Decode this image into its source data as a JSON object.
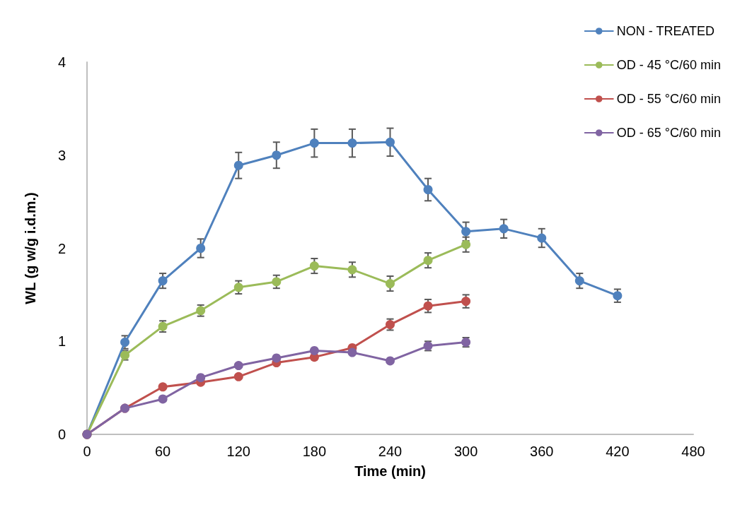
{
  "chart_data": {
    "type": "line",
    "xlabel": "Time (min)",
    "ylabel": "WL (g w/g i.d.m.)",
    "x": [
      0,
      30,
      60,
      90,
      120,
      150,
      180,
      210,
      240,
      270,
      300,
      330,
      360,
      390,
      420
    ],
    "series": [
      {
        "name": "NON - TREATED",
        "color": "#4f81bd",
        "values": [
          0,
          0.99,
          1.65,
          2.0,
          2.89,
          3.0,
          3.13,
          3.13,
          3.14,
          2.63,
          2.18,
          2.21,
          2.11,
          1.65,
          1.49
        ],
        "errors": [
          null,
          0.07,
          0.08,
          0.1,
          0.14,
          0.14,
          0.15,
          0.15,
          0.15,
          0.12,
          0.1,
          0.1,
          0.1,
          0.08,
          0.07
        ]
      },
      {
        "name": "OD - 45 °C/60 min",
        "color": "#9bbb59",
        "x": [
          0,
          30,
          60,
          90,
          120,
          150,
          180,
          210,
          240,
          270,
          300
        ],
        "values": [
          0,
          0.85,
          1.16,
          1.33,
          1.58,
          1.64,
          1.81,
          1.77,
          1.62,
          1.87,
          2.04
        ],
        "errors": [
          null,
          0.05,
          0.06,
          0.06,
          0.07,
          0.07,
          0.08,
          0.08,
          0.08,
          0.08,
          0.08
        ]
      },
      {
        "name": "OD - 55 °C/60 min",
        "color": "#c0504d",
        "x": [
          0,
          30,
          60,
          90,
          120,
          150,
          180,
          210,
          240,
          270,
          300
        ],
        "values": [
          0,
          0.28,
          0.51,
          0.56,
          0.62,
          0.77,
          0.83,
          0.93,
          1.18,
          1.38,
          1.43
        ],
        "errors": [
          null,
          null,
          null,
          null,
          null,
          null,
          null,
          null,
          0.06,
          0.07,
          0.07
        ]
      },
      {
        "name": "OD - 65 °C/60 min",
        "color": "#8064a2",
        "x": [
          0,
          30,
          60,
          90,
          120,
          150,
          180,
          210,
          240,
          270,
          300
        ],
        "values": [
          0,
          0.28,
          0.38,
          0.61,
          0.74,
          0.82,
          0.9,
          0.88,
          0.79,
          0.95,
          0.99
        ],
        "errors": [
          null,
          null,
          null,
          null,
          null,
          null,
          null,
          null,
          null,
          0.05,
          0.05
        ]
      }
    ],
    "xlim": [
      0,
      480
    ],
    "xticks": [
      0,
      60,
      120,
      180,
      240,
      300,
      360,
      420,
      480
    ],
    "ylim": [
      0,
      4
    ],
    "yticks": [
      0,
      1,
      2,
      3,
      4
    ],
    "grid": false,
    "legend": "top right",
    "marker": "circle",
    "line_style": "solid"
  }
}
